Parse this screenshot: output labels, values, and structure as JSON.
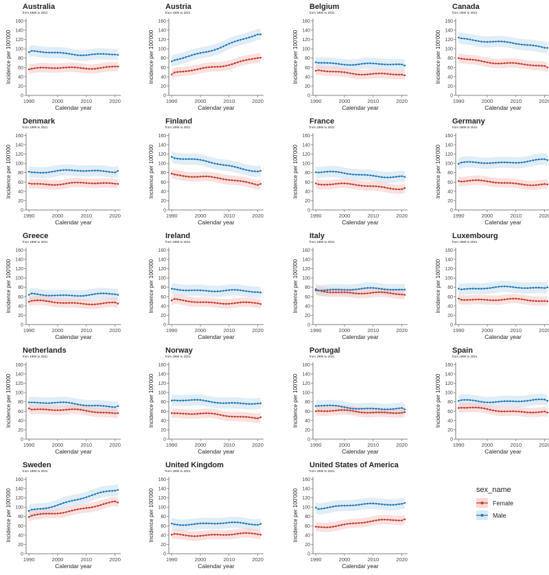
{
  "colors": {
    "female": "#c0392b",
    "male": "#1f77b4",
    "female_band": "#f5c6c2",
    "male_band": "#c7dff0",
    "axis": "#555555",
    "text": "#222222"
  },
  "legend": {
    "title": "sex_name",
    "entries": [
      "Female",
      "Male"
    ]
  },
  "chart_data": {
    "type": "line",
    "layout": "facet-grid",
    "xlabel": "Calendar year",
    "ylabel": "Incidence per 100'000",
    "subtitle": "from 1990 to 2021",
    "x_ticks": [
      1990,
      2000,
      2010,
      2020
    ],
    "y_ticks": [
      0,
      20,
      40,
      60,
      80,
      100,
      120,
      140,
      160
    ],
    "xlim": [
      1989,
      2022
    ],
    "ylim": [
      0,
      165
    ],
    "years": [
      1990,
      1991,
      1992,
      1993,
      1994,
      1995,
      1996,
      1997,
      1998,
      1999,
      2000,
      2001,
      2002,
      2003,
      2004,
      2005,
      2006,
      2007,
      2008,
      2009,
      2010,
      2011,
      2012,
      2013,
      2014,
      2015,
      2016,
      2017,
      2018,
      2019,
      2020,
      2021
    ],
    "panels": [
      {
        "country": "Australia",
        "female_start": 56,
        "female_end": 62,
        "male_start": 93,
        "male_end": 87
      },
      {
        "country": "Austria",
        "female_start": 45,
        "female_end": 81,
        "male_start": 73,
        "male_end": 131
      },
      {
        "country": "Belgium",
        "female_start": 53,
        "female_end": 43,
        "male_start": 71,
        "male_end": 64
      },
      {
        "country": "Canada",
        "female_start": 80,
        "female_end": 60,
        "male_start": 124,
        "male_end": 102
      },
      {
        "country": "Denmark",
        "female_start": 57,
        "female_end": 56,
        "male_start": 82,
        "male_end": 84
      },
      {
        "country": "Finland",
        "female_start": 78,
        "female_end": 56,
        "male_start": 114,
        "male_end": 84
      },
      {
        "country": "France",
        "female_start": 57,
        "female_end": 47,
        "male_start": 81,
        "male_end": 71
      },
      {
        "country": "Germany",
        "female_start": 62,
        "female_end": 55,
        "male_start": 99,
        "male_end": 107
      },
      {
        "country": "Greece",
        "female_start": 49,
        "female_end": 45,
        "male_start": 64,
        "male_end": 64
      },
      {
        "country": "Ireland",
        "female_start": 52,
        "female_end": 44,
        "male_start": 77,
        "male_end": 69
      },
      {
        "country": "Italy",
        "female_start": 73,
        "female_end": 64,
        "male_start": 76,
        "male_end": 75
      },
      {
        "country": "Luxembourg",
        "female_start": 56,
        "female_end": 50,
        "male_start": 77,
        "male_end": 80
      },
      {
        "country": "Netherlands",
        "female_start": 66,
        "female_end": 56,
        "male_start": 79,
        "male_end": 71
      },
      {
        "country": "Norway",
        "female_start": 56,
        "female_end": 47,
        "male_start": 83,
        "male_end": 77
      },
      {
        "country": "Portugal",
        "female_start": 60,
        "female_end": 58,
        "male_start": 71,
        "male_end": 64
      },
      {
        "country": "Spain",
        "female_start": 67,
        "female_end": 57,
        "male_start": 82,
        "male_end": 82
      },
      {
        "country": "Sweden",
        "female_start": 79,
        "female_end": 110,
        "male_start": 92,
        "male_end": 137
      },
      {
        "country": "United Kingdom",
        "female_start": 41,
        "female_end": 41,
        "male_start": 65,
        "male_end": 64
      },
      {
        "country": "United States of America",
        "female_start": 58,
        "female_end": 74,
        "male_start": 99,
        "male_end": 109
      }
    ]
  }
}
